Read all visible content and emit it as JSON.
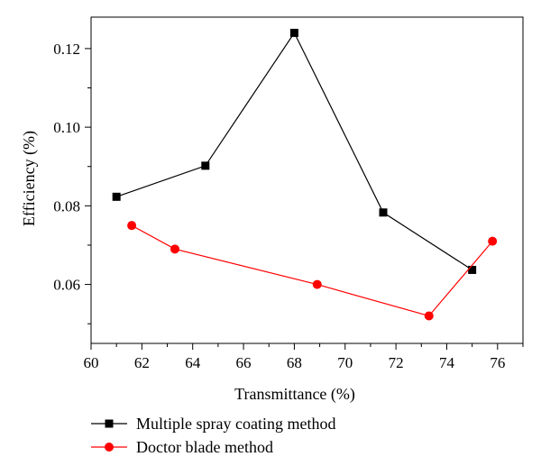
{
  "chart_data": {
    "type": "line",
    "xlabel": "Transmittance (%)",
    "ylabel": "Efficiency (%)",
    "xlim": [
      60,
      77
    ],
    "ylim": [
      0.045,
      0.128
    ],
    "x_ticks": [
      60,
      62,
      64,
      66,
      68,
      70,
      72,
      74,
      76
    ],
    "y_ticks": [
      0.06,
      0.08,
      0.1,
      0.12
    ],
    "y_tick_labels": [
      "0.06",
      "0.08",
      "0.10",
      "0.12"
    ],
    "legend_position": "bottom-left, below plot",
    "grid": false,
    "series": [
      {
        "name": "Multiple spray coating method",
        "color": "#000000",
        "marker": "square",
        "x": [
          61.0,
          64.5,
          68.0,
          71.5,
          75.0
        ],
        "y": [
          0.0823,
          0.0902,
          0.124,
          0.0783,
          0.0637
        ]
      },
      {
        "name": "Doctor blade method",
        "color": "#ff0000",
        "marker": "circle",
        "x": [
          61.6,
          63.3,
          68.9,
          73.3,
          75.8
        ],
        "y": [
          0.075,
          0.069,
          0.06,
          0.052,
          0.071
        ]
      }
    ]
  }
}
